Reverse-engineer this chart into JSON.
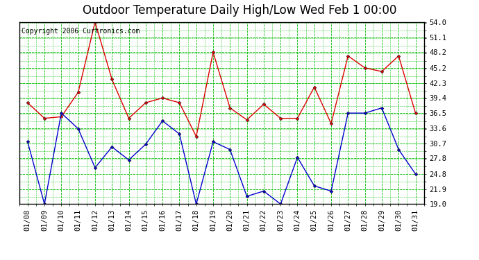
{
  "title": "Outdoor Temperature Daily High/Low Wed Feb 1 00:00",
  "copyright": "Copyright 2006 Curtronics.com",
  "dates": [
    "01/08",
    "01/09",
    "01/10",
    "01/11",
    "01/12",
    "01/13",
    "01/14",
    "01/15",
    "01/16",
    "01/17",
    "01/18",
    "01/19",
    "01/20",
    "01/21",
    "01/22",
    "01/23",
    "01/24",
    "01/25",
    "01/26",
    "01/27",
    "01/28",
    "01/29",
    "01/30",
    "01/31"
  ],
  "high_temps": [
    38.5,
    35.5,
    35.8,
    40.5,
    54.0,
    43.0,
    35.5,
    38.5,
    39.4,
    38.5,
    32.0,
    48.2,
    37.5,
    35.2,
    38.2,
    35.5,
    35.5,
    41.5,
    34.5,
    47.5,
    45.2,
    44.5,
    47.5,
    36.5
  ],
  "low_temps": [
    31.0,
    19.0,
    36.5,
    33.5,
    26.0,
    30.0,
    27.5,
    30.5,
    35.0,
    32.5,
    19.0,
    31.0,
    29.5,
    20.5,
    21.5,
    19.0,
    28.0,
    22.5,
    21.5,
    36.5,
    36.5,
    37.5,
    29.5,
    24.8
  ],
  "high_color": "#dd0000",
  "low_color": "#0000cc",
  "bg_color": "#ffffff",
  "plot_bg_color": "#ffffff",
  "grid_color": "#00bb00",
  "border_color": "#000000",
  "yticks": [
    19.0,
    21.9,
    24.8,
    27.8,
    30.7,
    33.6,
    36.5,
    39.4,
    42.3,
    45.2,
    48.2,
    51.1,
    54.0
  ],
  "ymin": 19.0,
  "ymax": 54.0,
  "title_fontsize": 12,
  "tick_fontsize": 7.5,
  "copyright_fontsize": 7,
  "marker": "D",
  "marker_size": 2.5,
  "line_width": 1.0
}
